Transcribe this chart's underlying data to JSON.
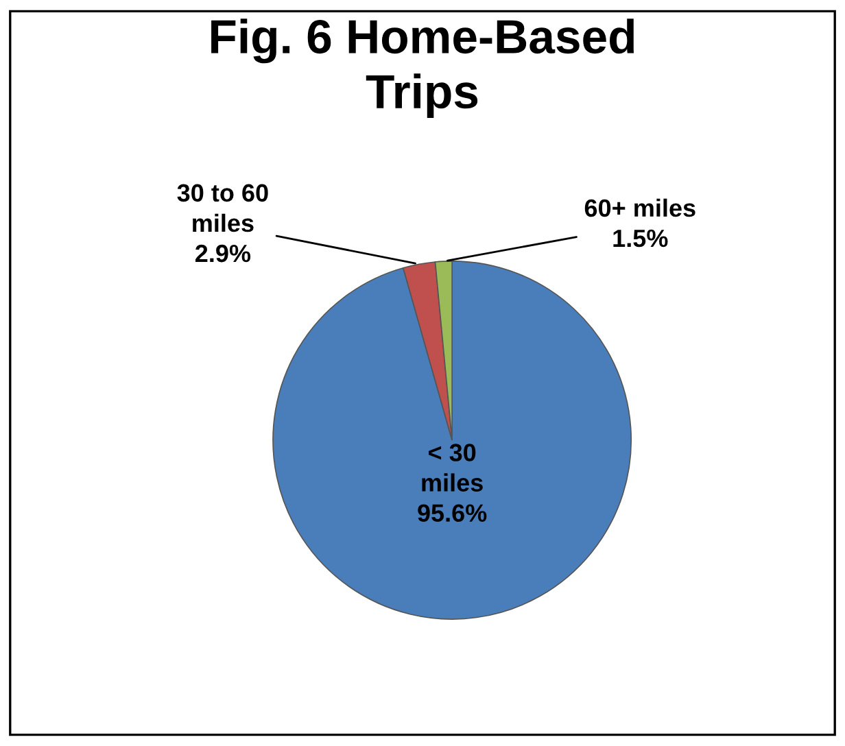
{
  "chart_data": {
    "type": "pie",
    "title": "Fig. 6 Home-Based\nTrips",
    "categories": [
      "< 30\nmiles",
      "30 to 60\nmiles",
      "60+ miles"
    ],
    "values": [
      95.6,
      2.9,
      1.5
    ],
    "value_labels": [
      "95.6%",
      "2.9%",
      "1.5%"
    ],
    "colors": [
      "#4a7ebb",
      "#c0504d",
      "#9bbb59"
    ]
  }
}
